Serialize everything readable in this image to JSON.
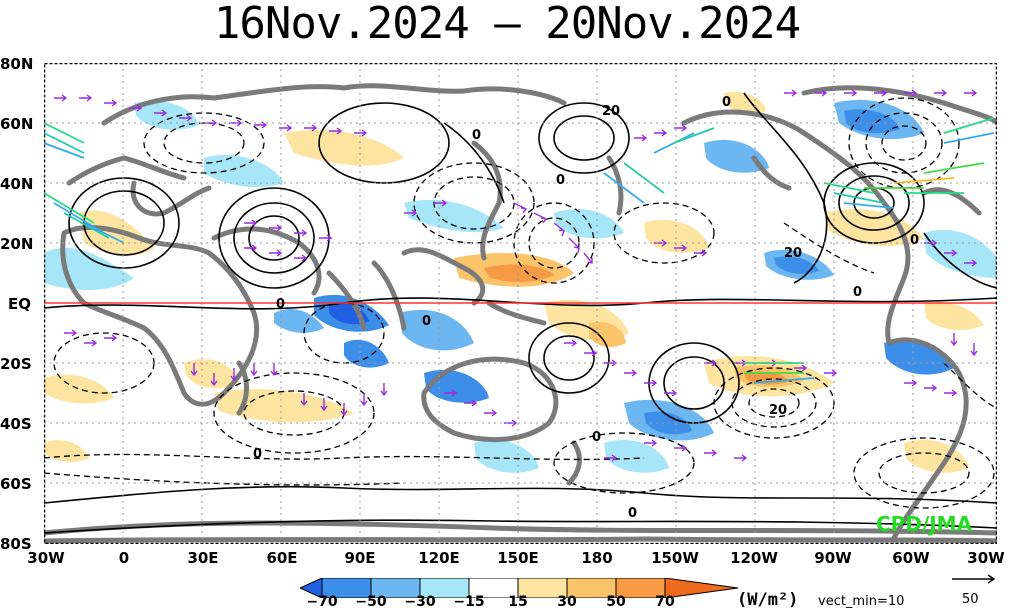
{
  "title": "16Nov.2024 – 20Nov.2024",
  "lat_labels": [
    "80N",
    "60N",
    "40N",
    "20N",
    "EQ",
    "20S",
    "40S",
    "60S",
    "80S"
  ],
  "lon_labels": [
    "30W",
    "0",
    "30E",
    "60E",
    "90E",
    "120E",
    "150E",
    "180",
    "150W",
    "120W",
    "90W",
    "60W",
    "30W"
  ],
  "contour_labels": [
    "0",
    "0",
    "20",
    "0",
    "0",
    "20",
    "0",
    "0",
    "0",
    "20",
    "0",
    "0",
    "0"
  ],
  "colorbar": {
    "ticks": [
      "−70",
      "−50",
      "−30",
      "−15",
      "15",
      "30",
      "50",
      "70"
    ],
    "colors": [
      "#1f5fe0",
      "#3d8ee8",
      "#6cb7f2",
      "#a6e6f8",
      "#ffffff",
      "#fde4a0",
      "#fbc46a",
      "#f79a45",
      "#f06a1d"
    ],
    "units": "(W/m²)",
    "vect_min": "vect_min=10",
    "ref_vector": "50"
  },
  "credit": "CPD/JMA",
  "colors": {
    "equator": "#ff3333",
    "land": "#7a7a7a",
    "vector": "#9a2be2",
    "grid": "#9a9a9a"
  }
}
